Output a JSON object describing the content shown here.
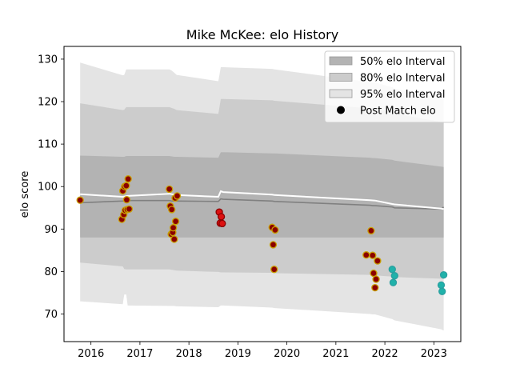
{
  "chart_data": {
    "type": "scatter",
    "title": "Mike McKee: elo History",
    "xlabel": "",
    "ylabel": "elo score",
    "xlim": [
      2015.45,
      2023.55
    ],
    "ylim": [
      63.5,
      133.0
    ],
    "xticks": [
      2016,
      2017,
      2018,
      2019,
      2020,
      2021,
      2022,
      2023
    ],
    "yticks": [
      70,
      80,
      90,
      100,
      110,
      120,
      130
    ],
    "grid": false,
    "legend_position": "top-right",
    "legend": [
      {
        "label": "50% elo Interval",
        "kind": "band",
        "color": "#b3b3b3"
      },
      {
        "label": "80% elo Interval",
        "kind": "band",
        "color": "#cccccc"
      },
      {
        "label": "95% elo Interval",
        "kind": "band",
        "color": "#e4e4e4"
      },
      {
        "label": "Post Match elo",
        "kind": "marker",
        "color": "#000000"
      }
    ],
    "bands": {
      "x": [
        2015.78,
        2016.65,
        2016.68,
        2016.72,
        2016.75,
        2017.6,
        2017.65,
        2017.7,
        2017.75,
        2018.6,
        2018.65,
        2018.7,
        2019.7,
        2019.75,
        2021.7,
        2021.75,
        2021.8,
        2022.15,
        2022.2,
        2023.15,
        2023.2
      ],
      "p95_upper": [
        129.2,
        126.2,
        126.3,
        127.6,
        127.6,
        127.6,
        127.3,
        126.8,
        126.3,
        124.8,
        128.1,
        128.1,
        127.7,
        127.6,
        124.6,
        124.5,
        124.5,
        123.4,
        123.1,
        120.7,
        120.6
      ],
      "p80_upper": [
        119.6,
        118.0,
        118.1,
        118.7,
        118.7,
        118.7,
        118.5,
        118.3,
        118.0,
        117.1,
        120.6,
        120.6,
        120.3,
        120.2,
        118.4,
        118.3,
        118.3,
        117.5,
        117.2,
        115.2,
        115.1
      ],
      "p50_upper": [
        107.3,
        107.0,
        107.0,
        107.2,
        107.2,
        107.2,
        107.1,
        107.0,
        107.0,
        106.8,
        108.1,
        108.1,
        107.8,
        107.8,
        106.8,
        106.7,
        106.7,
        106.3,
        106.1,
        104.7,
        104.6
      ],
      "median": [
        96.2,
        96.6,
        96.6,
        96.7,
        96.7,
        96.7,
        96.6,
        96.6,
        96.6,
        96.5,
        97.1,
        97.0,
        96.6,
        96.5,
        95.6,
        95.5,
        95.5,
        95.2,
        95.0,
        94.7,
        95.2
      ],
      "p50_lower": [
        88.0,
        88.0,
        88.0,
        88.0,
        88.0,
        88.0,
        88.0,
        88.0,
        88.0,
        88.0,
        88.0,
        88.0,
        88.0,
        88.0,
        88.0,
        88.0,
        88.0,
        88.0,
        88.0,
        88.0,
        88.0
      ],
      "p80_lower": [
        82.1,
        81.2,
        80.6,
        80.5,
        80.5,
        80.5,
        80.4,
        80.3,
        80.2,
        79.9,
        79.8,
        79.8,
        79.7,
        79.6,
        79.2,
        79.1,
        79.1,
        78.8,
        78.7,
        78.3,
        78.2
      ],
      "p95_lower": [
        73.0,
        72.3,
        74.6,
        74.6,
        72.0,
        71.9,
        71.9,
        71.9,
        71.8,
        71.6,
        72.0,
        72.0,
        71.5,
        71.4,
        70.0,
        69.9,
        69.9,
        68.8,
        68.5,
        66.4,
        66.1
      ]
    },
    "mean_line": {
      "x": [
        2015.78,
        2016.65,
        2016.75,
        2017.6,
        2017.75,
        2018.6,
        2018.65,
        2018.7,
        2019.7,
        2019.75,
        2021.7,
        2021.8,
        2022.15,
        2022.2,
        2023.15,
        2023.2
      ],
      "y": [
        98.2,
        97.6,
        97.8,
        98.3,
        98.0,
        97.6,
        98.9,
        98.7,
        98.1,
        98.0,
        96.8,
        96.7,
        95.9,
        95.8,
        94.8,
        94.7
      ]
    },
    "series": [
      {
        "color": "#c8a000",
        "fill": "#8b0000",
        "x": [
          2015.78,
          2016.63,
          2016.65,
          2016.67,
          2016.69,
          2016.7,
          2016.72,
          2016.73,
          2016.74,
          2016.76,
          2016.78,
          2017.6,
          2017.62,
          2017.64,
          2017.65,
          2017.67,
          2017.68,
          2017.7,
          2017.72,
          2017.73,
          2017.76,
          2019.7,
          2019.72,
          2019.74,
          2019.76,
          2021.62,
          2021.72,
          2021.75,
          2021.77,
          2021.8,
          2021.82,
          2021.85
        ],
        "y": [
          96.8,
          92.3,
          99.0,
          93.4,
          100.0,
          94.4,
          100.2,
          96.9,
          94.6,
          101.8,
          94.7,
          99.4,
          95.4,
          88.8,
          94.6,
          89.2,
          90.3,
          87.6,
          97.3,
          91.8,
          97.8,
          90.4,
          86.3,
          80.5,
          89.8,
          83.9,
          89.6,
          83.8,
          79.6,
          76.2,
          78.2,
          82.5
        ]
      },
      {
        "color": "#8b0000",
        "fill": "#dd1111",
        "x": [
          2018.62,
          2018.64,
          2018.66,
          2018.68
        ],
        "y": [
          94.0,
          91.4,
          92.9,
          91.3
        ]
      },
      {
        "color": "#2aa0a0",
        "fill": "#20b2aa",
        "x": [
          2022.15,
          2022.17,
          2022.2,
          2023.15,
          2023.17,
          2023.2
        ],
        "y": [
          80.5,
          77.4,
          79.0,
          76.8,
          75.3,
          79.2
        ]
      }
    ]
  }
}
